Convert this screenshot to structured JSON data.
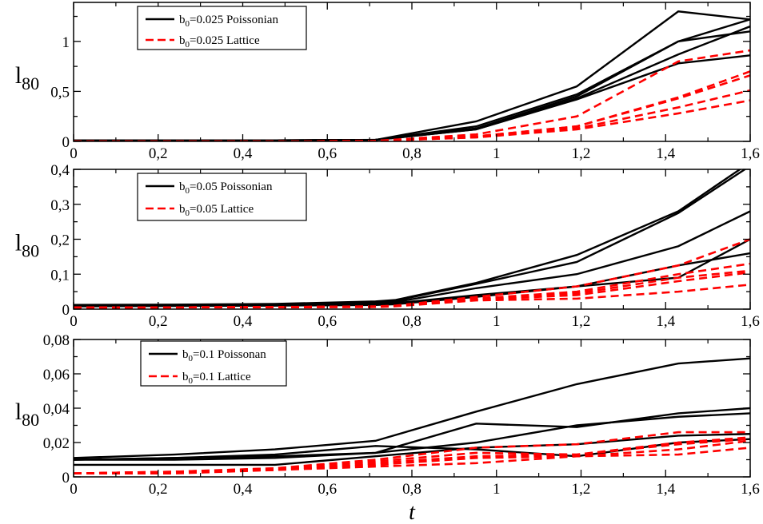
{
  "chart_data": [
    {
      "type": "line",
      "ylabel": "l80",
      "ylabel_main": "l",
      "ylabel_sub": "80",
      "xlim": [
        0,
        1.6
      ],
      "ylim": [
        0,
        1.39
      ],
      "yticks": [
        0,
        0.5,
        1
      ],
      "ytick_labels": [
        "0",
        "0,5",
        "1"
      ],
      "yminor": 0.25,
      "xticks": [
        0,
        0.2,
        0.4,
        0.6,
        0.8,
        1,
        1.2,
        1.4,
        1.6
      ],
      "xtick_labels": [
        "0",
        "0,2",
        "0,4",
        "0,6",
        "0,8",
        "1",
        "1,2",
        "1,4",
        "1,6"
      ],
      "legend_position": "top-left",
      "legend": [
        {
          "pre": "b",
          "sub": "0",
          "post": "=0.025 Poissonian",
          "style": "solid",
          "color": "#000000"
        },
        {
          "pre": "b",
          "sub": "0",
          "post": "=0.025 Lattice",
          "style": "dashed",
          "color": "#ff0000"
        }
      ],
      "x": [
        0,
        0.238,
        0.476,
        0.714,
        0.952,
        1.19,
        1.43,
        1.6
      ],
      "series": [
        {
          "group": "Poissonian",
          "values": [
            0.01,
            0.01,
            0.01,
            0.015,
            0.2,
            0.55,
            1.3,
            1.22
          ]
        },
        {
          "group": "Poissonian",
          "values": [
            0.01,
            0.01,
            0.01,
            0.015,
            0.15,
            0.47,
            1.0,
            1.22
          ]
        },
        {
          "group": "Poissonian",
          "values": [
            0.01,
            0.01,
            0.01,
            0.015,
            0.13,
            0.45,
            1.0,
            1.1
          ]
        },
        {
          "group": "Poissonian",
          "values": [
            0.01,
            0.01,
            0.01,
            0.015,
            0.12,
            0.43,
            0.87,
            1.15
          ]
        },
        {
          "group": "Poissonian",
          "values": [
            0.01,
            0.01,
            0.01,
            0.015,
            0.12,
            0.42,
            0.78,
            0.86
          ]
        },
        {
          "group": "Lattice",
          "values": [
            0.0,
            0.0,
            0.0,
            0.005,
            0.07,
            0.25,
            0.8,
            0.91
          ]
        },
        {
          "group": "Lattice",
          "values": [
            0.0,
            0.0,
            0.0,
            0.005,
            0.05,
            0.15,
            0.44,
            0.7
          ]
        },
        {
          "group": "Lattice",
          "values": [
            0.0,
            0.0,
            0.0,
            0.005,
            0.05,
            0.15,
            0.43,
            0.66
          ]
        },
        {
          "group": "Lattice",
          "values": [
            0.0,
            0.0,
            0.0,
            0.005,
            0.04,
            0.13,
            0.34,
            0.51
          ]
        },
        {
          "group": "Lattice",
          "values": [
            0.0,
            0.0,
            0.0,
            0.005,
            0.04,
            0.12,
            0.28,
            0.41
          ]
        }
      ]
    },
    {
      "type": "line",
      "ylabel": "l80",
      "ylabel_main": "l",
      "ylabel_sub": "80",
      "xlim": [
        0,
        1.6
      ],
      "ylim": [
        0,
        0.4
      ],
      "yticks": [
        0,
        0.1,
        0.2,
        0.3,
        0.4
      ],
      "ytick_labels": [
        "0",
        "0,1",
        "0,2",
        "0,3",
        "0,4"
      ],
      "yminor": 0.05,
      "xticks": [
        0,
        0.2,
        0.4,
        0.6,
        0.8,
        1,
        1.2,
        1.4,
        1.6
      ],
      "xtick_labels": [
        "0",
        "0,2",
        "0,4",
        "0,6",
        "0,8",
        "1",
        "1,2",
        "1,4",
        "1,6"
      ],
      "legend_position": "top-left",
      "legend": [
        {
          "pre": "b",
          "sub": "0",
          "post": "=0.05 Poissonian",
          "style": "solid",
          "color": "#000000"
        },
        {
          "pre": "b",
          "sub": "0",
          "post": "=0.05 Lattice",
          "style": "dashed",
          "color": "#ff0000"
        }
      ],
      "x": [
        0,
        0.238,
        0.476,
        0.714,
        0.76,
        0.952,
        1.19,
        1.43,
        1.6
      ],
      "series": [
        {
          "group": "Poissonian",
          "values": [
            0.012,
            0.013,
            0.015,
            0.022,
            0.026,
            0.075,
            0.155,
            0.28,
            0.42
          ]
        },
        {
          "group": "Poissonian",
          "values": [
            0.011,
            0.012,
            0.014,
            0.02,
            0.024,
            0.072,
            0.135,
            0.275,
            0.41
          ]
        },
        {
          "group": "Poissonian",
          "values": [
            0.01,
            0.011,
            0.013,
            0.018,
            0.02,
            0.06,
            0.1,
            0.18,
            0.28
          ]
        },
        {
          "group": "Poissonian",
          "values": [
            0.009,
            0.01,
            0.012,
            0.015,
            0.017,
            0.04,
            0.065,
            0.125,
            0.16
          ]
        },
        {
          "group": "Poissonian",
          "values": [
            0.008,
            0.009,
            0.01,
            0.012,
            0.014,
            0.035,
            0.065,
            0.09,
            0.2
          ]
        },
        {
          "group": "Lattice",
          "values": [
            0.005,
            0.005,
            0.006,
            0.008,
            0.01,
            0.035,
            0.065,
            0.125,
            0.2
          ]
        },
        {
          "group": "Lattice",
          "values": [
            0.004,
            0.005,
            0.006,
            0.007,
            0.009,
            0.03,
            0.05,
            0.1,
            0.13
          ]
        },
        {
          "group": "Lattice",
          "values": [
            0.004,
            0.005,
            0.006,
            0.007,
            0.009,
            0.028,
            0.045,
            0.09,
            0.11
          ]
        },
        {
          "group": "Lattice",
          "values": [
            0.004,
            0.005,
            0.006,
            0.007,
            0.009,
            0.027,
            0.04,
            0.08,
            0.105
          ]
        },
        {
          "group": "Lattice",
          "values": [
            0.004,
            0.005,
            0.005,
            0.006,
            0.008,
            0.025,
            0.03,
            0.05,
            0.07
          ]
        }
      ]
    },
    {
      "type": "line",
      "ylabel": "l80",
      "ylabel_main": "l",
      "ylabel_sub": "80",
      "xlabel": "t",
      "xlim": [
        0,
        1.6
      ],
      "ylim": [
        0,
        0.08
      ],
      "yticks": [
        0,
        0.02,
        0.04,
        0.06,
        0.08
      ],
      "ytick_labels": [
        "0",
        "0,02",
        "0,04",
        "0,06",
        "0,08"
      ],
      "yminor": 0.01,
      "xticks": [
        0,
        0.2,
        0.4,
        0.6,
        0.8,
        1,
        1.2,
        1.4,
        1.6
      ],
      "xtick_labels": [
        "0",
        "0,2",
        "0,4",
        "0,6",
        "0,8",
        "1",
        "1,2",
        "1,4",
        "1,6"
      ],
      "legend_position": "top-left",
      "legend": [
        {
          "pre": "b",
          "sub": "0",
          "post": "=0.1 Poissonan",
          "style": "solid",
          "color": "#000000"
        },
        {
          "pre": "b",
          "sub": "0",
          "post": "=0.1 Lattice",
          "style": "dashed",
          "color": "#ff0000"
        }
      ],
      "x": [
        0,
        0.238,
        0.476,
        0.714,
        0.952,
        1.19,
        1.43,
        1.6
      ],
      "series": [
        {
          "group": "Poissonian",
          "values": [
            0.011,
            0.013,
            0.016,
            0.021,
            0.038,
            0.054,
            0.066,
            0.069
          ]
        },
        {
          "group": "Poissonian",
          "values": [
            0.01,
            0.011,
            0.012,
            0.014,
            0.031,
            0.029,
            0.037,
            0.04
          ]
        },
        {
          "group": "Poissonian",
          "values": [
            0.01,
            0.011,
            0.013,
            0.018,
            0.016,
            0.012,
            0.02,
            0.022
          ]
        },
        {
          "group": "Poissonian",
          "values": [
            0.01,
            0.01,
            0.011,
            0.014,
            0.02,
            0.03,
            0.035,
            0.037
          ]
        },
        {
          "group": "Poissonian",
          "values": [
            0.007,
            0.007,
            0.007,
            0.012,
            0.017,
            0.019,
            0.024,
            0.025
          ]
        },
        {
          "group": "Lattice",
          "values": [
            0.002,
            0.003,
            0.005,
            0.01,
            0.017,
            0.019,
            0.026,
            0.026
          ]
        },
        {
          "group": "Lattice",
          "values": [
            0.002,
            0.003,
            0.005,
            0.009,
            0.014,
            0.013,
            0.02,
            0.023
          ]
        },
        {
          "group": "Lattice",
          "values": [
            0.002,
            0.003,
            0.004,
            0.008,
            0.012,
            0.013,
            0.019,
            0.022
          ]
        },
        {
          "group": "Lattice",
          "values": [
            0.002,
            0.003,
            0.004,
            0.007,
            0.011,
            0.012,
            0.016,
            0.021
          ]
        },
        {
          "group": "Lattice",
          "values": [
            0.002,
            0.002,
            0.004,
            0.006,
            0.008,
            0.012,
            0.013,
            0.017
          ]
        }
      ]
    }
  ],
  "colors": {
    "poissonian": "#000000",
    "lattice": "#ff0000"
  }
}
